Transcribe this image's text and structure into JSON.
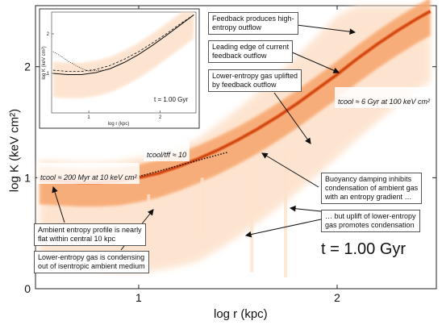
{
  "chart_data": {
    "type": "heatmap",
    "xlabel": "log r (kpc)",
    "ylabel": "log K (keV cm²)",
    "xlim": [
      0.48,
      2.5
    ],
    "ylim": [
      0,
      2.55
    ],
    "x_ticks": [
      "1",
      "2"
    ],
    "y_ticks": [
      "0",
      "1",
      "2"
    ],
    "colormap": "white-to-orange",
    "ridge": {
      "x": [
        0.5,
        0.6,
        0.7,
        0.8,
        0.9,
        1.0,
        1.1,
        1.2,
        1.3,
        1.4,
        1.5,
        1.6,
        1.7,
        1.8,
        1.9,
        2.0,
        2.1,
        2.2,
        2.3,
        2.4,
        2.47
      ],
      "y": [
        0.98,
        0.97,
        0.96,
        0.96,
        0.97,
        1.0,
        1.04,
        1.1,
        1.17,
        1.25,
        1.34,
        1.44,
        1.55,
        1.67,
        1.8,
        1.93,
        2.07,
        2.2,
        2.32,
        2.43,
        2.5
      ]
    },
    "tcool_tff_line": {
      "x": [
        1.0,
        1.45
      ],
      "y": [
        1.01,
        1.23
      ]
    },
    "time_label": "t = 1.00 Gyr",
    "inset": {
      "xlabel": "log r (kpc)",
      "ylabel": "log K (keV cm²)",
      "x_ticks": [
        "1",
        "2"
      ],
      "y_ticks": [
        "1",
        "2"
      ],
      "time_label": "t = 1.00 Gyr",
      "solid_line": {
        "x": [
          0.5,
          0.7,
          0.9,
          1.1,
          1.3,
          1.5,
          1.7,
          1.9,
          2.1,
          2.3,
          2.47
        ],
        "y": [
          1.0,
          0.97,
          0.97,
          1.02,
          1.12,
          1.28,
          1.48,
          1.72,
          1.98,
          2.25,
          2.48
        ]
      },
      "dashed_line": {
        "x": [
          0.5,
          0.7,
          0.9,
          1.1,
          1.3,
          1.5,
          1.7,
          1.9,
          2.1,
          2.3,
          2.47
        ],
        "y": [
          1.08,
          1.05,
          1.05,
          1.1,
          1.2,
          1.36,
          1.55,
          1.78,
          2.02,
          2.28,
          2.48
        ]
      },
      "dotted_line": {
        "x": [
          0.5,
          0.6,
          0.7,
          0.8,
          0.9,
          1.0,
          1.2
        ],
        "y": [
          1.55,
          1.45,
          1.32,
          1.22,
          1.12,
          1.06,
          1.08
        ]
      }
    }
  },
  "annotations": {
    "feedback_outflow": "Feedback produces high-\nentropy outflow",
    "leading_edge": "Leading edge of current\nfeedback outflow",
    "lower_entropy_uplift": "Lower-entropy gas uplifted\nby feedback outflow",
    "tcool_6gyr": "tcool ≈ 6 Gyr at 100 keV cm²",
    "tcool_tff": "tcool/tff ≈ 10",
    "tcool_200myr": "tcool ≈ 200 Myr at 10 keV cm²",
    "buoyancy": "Buoyancy damping inhibits\ncondensation of ambient gas\nwith an entropy gradient …",
    "uplift_condensation": "… but uplift of lower-entropy\ngas promotes condensation",
    "ambient_flat": "Ambient entropy profile is nearly\nflat within central 10 kpc",
    "condensing": "Lower-entropy gas is condensing\nout of isentropic ambient medium"
  },
  "colors": {
    "heat_light": "#fde2cc",
    "heat_mid": "#f7a46a",
    "heat_dark": "#e8652a",
    "ridge": "#cc4410"
  }
}
